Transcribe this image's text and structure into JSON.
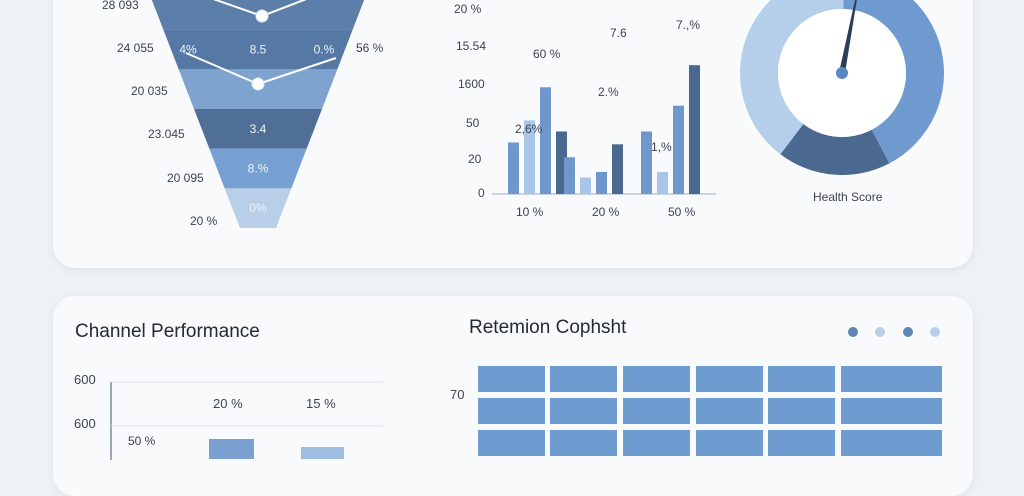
{
  "funnel": {
    "left_labels": [
      "28 093",
      "24 055",
      "20 035",
      "23.045",
      "20 095",
      "20 %"
    ],
    "right_label": "56 %",
    "bands": [
      {
        "text": "",
        "color": "#5b7fa8"
      },
      {
        "text": "8.5",
        "left": "4%",
        "right": "0.%",
        "color": "#5578a5"
      },
      {
        "text": "",
        "color": "#7fa3cf"
      },
      {
        "text": "3.4",
        "color": "#4f6f96"
      },
      {
        "text": "8.%",
        "color": "#76a0d2"
      },
      {
        "text": "0%",
        "color": "#b9cfe8"
      }
    ]
  },
  "bar_chart": {
    "y_ticks": [
      "20 %",
      "15.54",
      "1600",
      "50",
      "20",
      "0"
    ],
    "x_ticks": [
      "10 %",
      "20 %",
      "50 %"
    ],
    "annotations": [
      "60 %",
      "7.6",
      "7.,%",
      "2.%",
      "2,6%",
      "1,%"
    ],
    "chart_data": {
      "type": "bar",
      "categories": [
        "10 %",
        "20 %",
        "50 %"
      ],
      "series": [
        {
          "values": [
            28,
            20,
            34
          ],
          "color": "#6e98cc"
        },
        {
          "values": [
            40,
            9,
            12
          ],
          "color": "#a9c6e8"
        },
        {
          "values": [
            58,
            12,
            48
          ],
          "color": "#6e98cc"
        },
        {
          "values": [
            34,
            27,
            70
          ],
          "color": "#4a6890"
        }
      ],
      "ylim": [
        0,
        100
      ]
    }
  },
  "donut": {
    "label": "Health Score",
    "chart_data": {
      "type": "pie",
      "values": [
        42,
        18,
        40
      ],
      "colors": [
        "#6f9ad0",
        "#4a6890",
        "#b5cfea"
      ],
      "needle_value": 0.03
    }
  },
  "channel": {
    "title": "Channel Performance",
    "y_ticks": [
      "600",
      "600",
      "50 %"
    ],
    "annotations": [
      "20 %",
      "15 %"
    ],
    "chart_data": {
      "type": "bar",
      "values": [
        58,
        52
      ],
      "ylim": [
        0,
        600
      ]
    }
  },
  "retention": {
    "title": "Retemion Cophsht",
    "row_label": "70",
    "dots": [
      "#5e86b8",
      "#b9cfe8",
      "#5e86b8",
      "#b9cfe8"
    ]
  }
}
